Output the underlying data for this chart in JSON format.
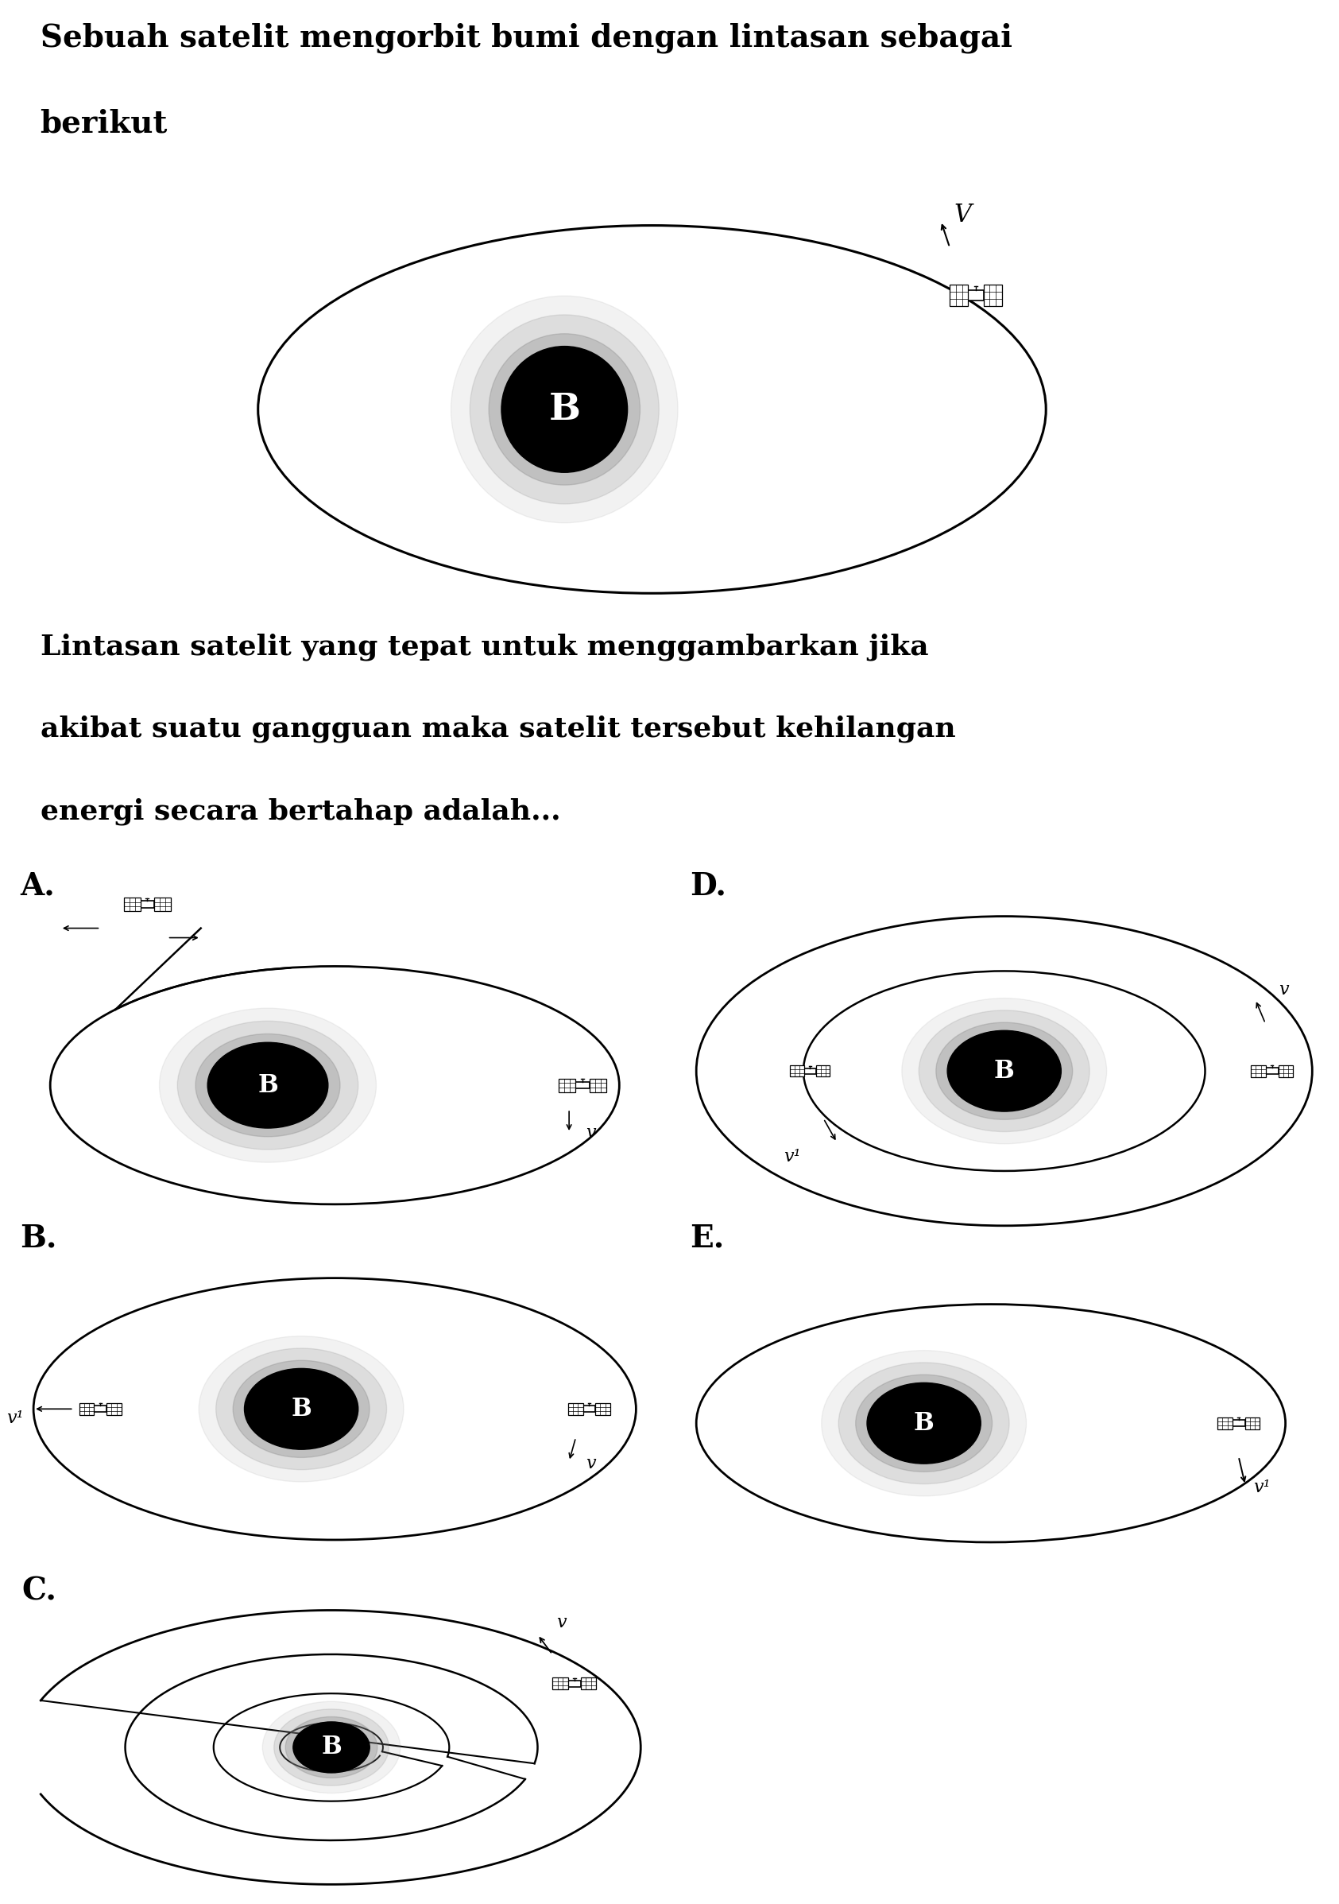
{
  "title_line1": "Sebuah satelit mengorbit bumi dengan lintasan sebagai",
  "title_line2": "berikut",
  "question_line1": "Lintasan satelit yang tepat untuk menggambarkan jika",
  "question_line2": "akibat suatu gangguan maka satelit tersebut kehilangan",
  "question_line3": "energi secara bertahap adalah...",
  "bg_color": "#ffffff",
  "text_color": "#000000",
  "font_size_title": 28,
  "font_size_question": 26,
  "font_size_label": 28,
  "font_size_B_main": 36,
  "font_size_B_sub": 22,
  "font_size_V": 18
}
